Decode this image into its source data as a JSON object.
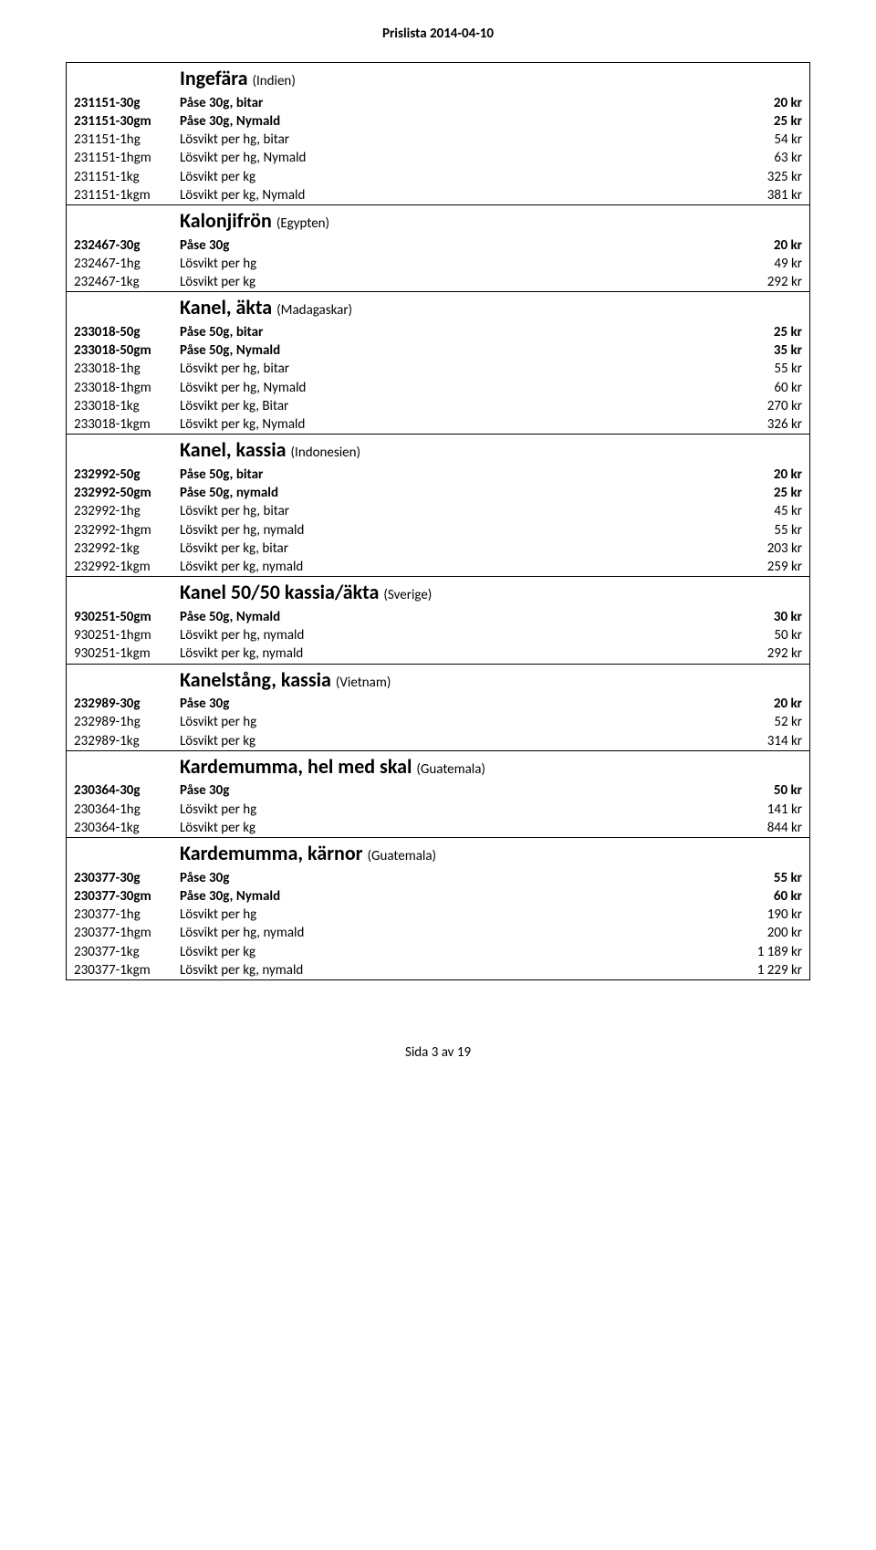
{
  "header": "Prislista 2014-04-10",
  "footer": "Sida 3 av 19",
  "sections": [
    {
      "title": "Ingefära",
      "origin": "(Indien)",
      "rows": [
        {
          "code": "231151-30g",
          "desc": "Påse 30g, bitar",
          "price": "20 kr",
          "bold": true
        },
        {
          "code": "231151-30gm",
          "desc": "Påse 30g, Nymald",
          "price": "25 kr",
          "bold": true
        },
        {
          "code": "231151-1hg",
          "desc": "Lösvikt per hg, bitar",
          "price": "54 kr",
          "bold": false
        },
        {
          "code": "231151-1hgm",
          "desc": "Lösvikt per hg, Nymald",
          "price": "63 kr",
          "bold": false
        },
        {
          "code": "231151-1kg",
          "desc": "Lösvikt per kg",
          "price": "325 kr",
          "bold": false
        },
        {
          "code": "231151-1kgm",
          "desc": "Lösvikt per kg, Nymald",
          "price": "381 kr",
          "bold": false
        }
      ]
    },
    {
      "title": "Kalonjifrön",
      "origin": "(Egypten)",
      "rows": [
        {
          "code": "232467-30g",
          "desc": "Påse 30g",
          "price": "20 kr",
          "bold": true
        },
        {
          "code": "232467-1hg",
          "desc": "Lösvikt per hg",
          "price": "49 kr",
          "bold": false
        },
        {
          "code": "232467-1kg",
          "desc": "Lösvikt per kg",
          "price": "292 kr",
          "bold": false
        }
      ]
    },
    {
      "title": "Kanel, äkta",
      "origin": "(Madagaskar)",
      "rows": [
        {
          "code": "233018-50g",
          "desc": "Påse 50g, bitar",
          "price": "25 kr",
          "bold": true
        },
        {
          "code": "233018-50gm",
          "desc": "Påse 50g, Nymald",
          "price": "35 kr",
          "bold": true
        },
        {
          "code": "233018-1hg",
          "desc": "Lösvikt per hg, bitar",
          "price": "55 kr",
          "bold": false
        },
        {
          "code": "233018-1hgm",
          "desc": "Lösvikt per hg, Nymald",
          "price": "60 kr",
          "bold": false
        },
        {
          "code": "233018-1kg",
          "desc": "Lösvikt per kg, Bitar",
          "price": "270 kr",
          "bold": false
        },
        {
          "code": "233018-1kgm",
          "desc": "Lösvikt per kg, Nymald",
          "price": "326 kr",
          "bold": false
        }
      ]
    },
    {
      "title": "Kanel, kassia",
      "origin": "(Indonesien)",
      "rows": [
        {
          "code": "232992-50g",
          "desc": "Påse 50g, bitar",
          "price": "20 kr",
          "bold": true
        },
        {
          "code": "232992-50gm",
          "desc": "Påse 50g, nymald",
          "price": "25 kr",
          "bold": true
        },
        {
          "code": "232992-1hg",
          "desc": "Lösvikt per hg, bitar",
          "price": "45 kr",
          "bold": false
        },
        {
          "code": "232992-1hgm",
          "desc": "Lösvikt per hg, nymald",
          "price": "55 kr",
          "bold": false
        },
        {
          "code": "232992-1kg",
          "desc": "Lösvikt per kg, bitar",
          "price": "203 kr",
          "bold": false
        },
        {
          "code": "232992-1kgm",
          "desc": "Lösvikt per kg, nymald",
          "price": "259 kr",
          "bold": false
        }
      ]
    },
    {
      "title": "Kanel 50/50 kassia/äkta",
      "origin": "(Sverige)",
      "rows": [
        {
          "code": "930251-50gm",
          "desc": "Påse 50g, Nymald",
          "price": "30 kr",
          "bold": true
        },
        {
          "code": "930251-1hgm",
          "desc": "Lösvikt per hg, nymald",
          "price": "50 kr",
          "bold": false
        },
        {
          "code": "930251-1kgm",
          "desc": "Lösvikt per kg, nymald",
          "price": "292 kr",
          "bold": false
        }
      ]
    },
    {
      "title": "Kanelstång, kassia",
      "origin": "(Vietnam)",
      "rows": [
        {
          "code": "232989-30g",
          "desc": "Påse 30g",
          "price": "20 kr",
          "bold": true
        },
        {
          "code": "232989-1hg",
          "desc": "Lösvikt per hg",
          "price": "52 kr",
          "bold": false
        },
        {
          "code": "232989-1kg",
          "desc": "Lösvikt per kg",
          "price": "314 kr",
          "bold": false
        }
      ]
    },
    {
      "title": "Kardemumma, hel med skal",
      "origin": "(Guatemala)",
      "rows": [
        {
          "code": "230364-30g",
          "desc": "Påse 30g",
          "price": "50 kr",
          "bold": true
        },
        {
          "code": "230364-1hg",
          "desc": "Lösvikt per hg",
          "price": "141 kr",
          "bold": false
        },
        {
          "code": "230364-1kg",
          "desc": "Lösvikt per kg",
          "price": "844 kr",
          "bold": false
        }
      ]
    },
    {
      "title": "Kardemumma, kärnor",
      "origin": "(Guatemala)",
      "rows": [
        {
          "code": "230377-30g",
          "desc": "Påse 30g",
          "price": "55 kr",
          "bold": true
        },
        {
          "code": "230377-30gm",
          "desc": "Påse 30g, Nymald",
          "price": "60 kr",
          "bold": true
        },
        {
          "code": "230377-1hg",
          "desc": "Lösvikt per hg",
          "price": "190 kr",
          "bold": false
        },
        {
          "code": "230377-1hgm",
          "desc": "Lösvikt per hg, nymald",
          "price": "200 kr",
          "bold": false
        },
        {
          "code": "230377-1kg",
          "desc": "Lösvikt per kg",
          "price": "1 189 kr",
          "bold": false
        },
        {
          "code": "230377-1kgm",
          "desc": "Lösvikt per kg, nymald",
          "price": "1 229 kr",
          "bold": false
        }
      ]
    }
  ]
}
